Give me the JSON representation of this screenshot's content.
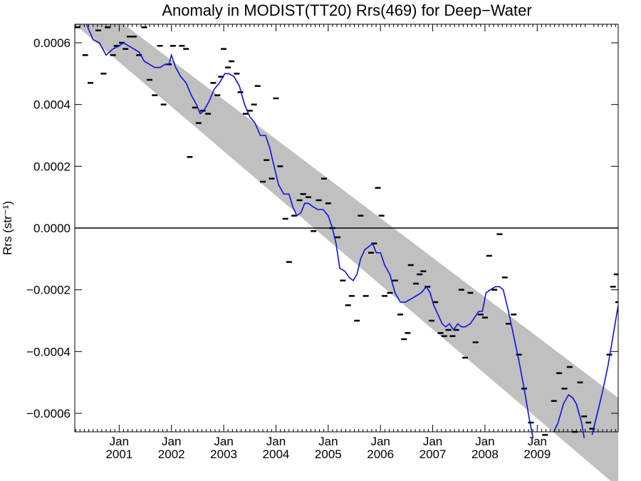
{
  "chart_data": {
    "type": "scatter",
    "title": "Anomaly in MODIST(TT20) Rrs(469) for Deep−Water",
    "xlabel": "",
    "ylabel": "Rrs (str⁻¹)",
    "xlim": [
      2000.15,
      2010.55
    ],
    "ylim": [
      -0.00066,
      0.00066
    ],
    "x_ticks": [
      {
        "x": 2001.0,
        "month": "Jan",
        "year": "2001"
      },
      {
        "x": 2002.0,
        "month": "Jan",
        "year": "2002"
      },
      {
        "x": 2003.0,
        "month": "Jan",
        "year": "2003"
      },
      {
        "x": 2004.0,
        "month": "Jan",
        "year": "2004"
      },
      {
        "x": 2005.0,
        "month": "Jan",
        "year": "2005"
      },
      {
        "x": 2006.0,
        "month": "Jan",
        "year": "2006"
      },
      {
        "x": 2007.0,
        "month": "Jan",
        "year": "2007"
      },
      {
        "x": 2008.0,
        "month": "Jan",
        "year": "2008"
      },
      {
        "x": 2009.0,
        "month": "Jan",
        "year": "2009"
      }
    ],
    "y_ticks": [
      {
        "y": 0.0006,
        "label": "0.0006"
      },
      {
        "y": 0.0004,
        "label": "0.0004"
      },
      {
        "y": 0.0002,
        "label": "0.0002"
      },
      {
        "y": 0.0,
        "label": "0.0000"
      },
      {
        "y": -0.0002,
        "label": "−0.0002"
      },
      {
        "y": -0.0004,
        "label": "−0.0004"
      },
      {
        "y": -0.0006,
        "label": "−0.0006"
      }
    ],
    "zero_line": 0.0,
    "band": {
      "upper": [
        [
          2000.15,
          0.00078
        ],
        [
          2010.55,
          -0.00055
        ]
      ],
      "lower": [
        [
          2000.15,
          0.00066
        ],
        [
          2010.55,
          -0.00084
        ]
      ],
      "color": "#c0c0c0"
    },
    "series": [
      {
        "marker": "dash",
        "color": "#000000",
        "points": [
          [
            2000.2,
            0.00065
          ],
          [
            2000.35,
            0.00056
          ],
          [
            2000.45,
            0.00047
          ],
          [
            2000.6,
            0.00064
          ],
          [
            2000.7,
            0.0005
          ],
          [
            2000.78,
            0.00065
          ],
          [
            2000.88,
            0.00056
          ],
          [
            2000.95,
            0.00059
          ],
          [
            2001.05,
            0.0006
          ],
          [
            2001.12,
            0.00058
          ],
          [
            2001.2,
            0.00062
          ],
          [
            2001.28,
            0.00062
          ],
          [
            2001.38,
            0.00056
          ],
          [
            2001.48,
            0.00065
          ],
          [
            2001.58,
            0.00048
          ],
          [
            2001.68,
            0.00043
          ],
          [
            2001.78,
            0.00059
          ],
          [
            2001.85,
            0.0004
          ],
          [
            2001.95,
            0.00053
          ],
          [
            2002.03,
            0.00059
          ],
          [
            2002.12,
            0.00067
          ],
          [
            2002.2,
            0.00059
          ],
          [
            2002.28,
            0.00058
          ],
          [
            2002.35,
            0.00023
          ],
          [
            2002.45,
            0.00039
          ],
          [
            2002.52,
            0.00034
          ],
          [
            2002.6,
            0.00038
          ],
          [
            2002.7,
            0.00037
          ],
          [
            2002.8,
            0.00047
          ],
          [
            2002.88,
            0.00043
          ],
          [
            2002.95,
            0.00049
          ],
          [
            2003.0,
            0.00058
          ],
          [
            2003.08,
            0.00052
          ],
          [
            2003.15,
            0.00054
          ],
          [
            2003.25,
            0.0005
          ],
          [
            2003.32,
            0.00044
          ],
          [
            2003.42,
            0.00037
          ],
          [
            2003.5,
            0.00038
          ],
          [
            2003.58,
            0.0004
          ],
          [
            2003.65,
            0.00046
          ],
          [
            2003.75,
            0.00015
          ],
          [
            2003.82,
            0.00022
          ],
          [
            2003.92,
            0.00016
          ],
          [
            2004.0,
            0.00042
          ],
          [
            2004.08,
            0.0002
          ],
          [
            2004.18,
            3e-05
          ],
          [
            2004.25,
            -0.00011
          ],
          [
            2004.35,
            4e-05
          ],
          [
            2004.45,
            9e-05
          ],
          [
            2004.52,
            0.00011
          ],
          [
            2004.62,
            0.0001
          ],
          [
            2004.72,
            -1e-05
          ],
          [
            2004.82,
            9e-05
          ],
          [
            2004.92,
            0.00016
          ],
          [
            2005.0,
            8e-05
          ],
          [
            2005.08,
            0.0
          ],
          [
            2005.18,
            -3e-05
          ],
          [
            2005.28,
            -0.00017
          ],
          [
            2005.38,
            -0.00025
          ],
          [
            2005.45,
            -0.00022
          ],
          [
            2005.55,
            -0.0003
          ],
          [
            2005.62,
            4e-05
          ],
          [
            2005.72,
            -0.00022
          ],
          [
            2005.82,
            -8e-05
          ],
          [
            2005.88,
            -5e-05
          ],
          [
            2005.95,
            0.00013
          ],
          [
            2006.02,
            4e-05
          ],
          [
            2006.08,
            -0.00022
          ],
          [
            2006.18,
            -0.00021
          ],
          [
            2006.28,
            -0.00017
          ],
          [
            2006.38,
            -0.00028
          ],
          [
            2006.45,
            -0.00036
          ],
          [
            2006.52,
            -0.00034
          ],
          [
            2006.58,
            -0.00012
          ],
          [
            2006.68,
            -0.00018
          ],
          [
            2006.75,
            -0.00015
          ],
          [
            2006.82,
            -0.00014
          ],
          [
            2006.9,
            -0.00019
          ],
          [
            2006.98,
            -0.0003
          ],
          [
            2007.05,
            -0.00024
          ],
          [
            2007.15,
            -0.00034
          ],
          [
            2007.22,
            -0.00035
          ],
          [
            2007.3,
            -0.00033
          ],
          [
            2007.38,
            -0.00035
          ],
          [
            2007.45,
            -0.00033
          ],
          [
            2007.55,
            -0.0002
          ],
          [
            2007.62,
            -0.00042
          ],
          [
            2007.72,
            -0.00021
          ],
          [
            2007.82,
            -0.00037
          ],
          [
            2007.92,
            -0.00028
          ],
          [
            2008.0,
            -0.00029
          ],
          [
            2008.08,
            -9e-05
          ],
          [
            2008.18,
            -0.0002
          ],
          [
            2008.28,
            -2e-05
          ],
          [
            2008.38,
            -0.00016
          ],
          [
            2008.45,
            -0.00031
          ],
          [
            2008.55,
            -0.00028
          ],
          [
            2008.65,
            -0.00041
          ],
          [
            2008.75,
            -0.00052
          ],
          [
            2008.88,
            -0.00063
          ],
          [
            2009.15,
            -0.00067
          ],
          [
            2009.32,
            -0.00056
          ],
          [
            2009.42,
            -0.00047
          ],
          [
            2009.52,
            -0.00052
          ],
          [
            2009.62,
            -0.00045
          ],
          [
            2009.72,
            -0.00066
          ],
          [
            2009.82,
            -0.0005
          ],
          [
            2009.9,
            -0.00061
          ],
          [
            2009.98,
            -0.00063
          ],
          [
            2010.05,
            -0.00065
          ],
          [
            2010.38,
            -0.00041
          ],
          [
            2010.45,
            -0.00019
          ],
          [
            2010.52,
            -0.00015
          ],
          [
            2010.55,
            -0.00024
          ]
        ]
      },
      {
        "marker": "line",
        "color": "#1010dd",
        "points": [
          [
            2000.35,
            0.00067
          ],
          [
            2000.5,
            0.00061
          ],
          [
            2000.62,
            0.0006
          ],
          [
            2000.75,
            0.00056
          ],
          [
            2000.88,
            0.00058
          ],
          [
            2001.0,
            0.00059
          ],
          [
            2001.08,
            0.0006
          ],
          [
            2001.18,
            0.00059
          ],
          [
            2001.28,
            0.00058
          ],
          [
            2001.38,
            0.00057
          ],
          [
            2001.48,
            0.00054
          ],
          [
            2001.58,
            0.00053
          ],
          [
            2001.68,
            0.00052
          ],
          [
            2001.78,
            0.00052
          ],
          [
            2001.88,
            0.00053
          ],
          [
            2001.95,
            0.00053
          ],
          [
            2002.0,
            0.00056
          ],
          [
            2002.08,
            0.00052
          ],
          [
            2002.18,
            0.00049
          ],
          [
            2002.28,
            0.00047
          ],
          [
            2002.38,
            0.00043
          ],
          [
            2002.48,
            0.0004
          ],
          [
            2002.55,
            0.00037
          ],
          [
            2002.62,
            0.00038
          ],
          [
            2002.72,
            0.00041
          ],
          [
            2002.82,
            0.00045
          ],
          [
            2002.92,
            0.00047
          ],
          [
            2003.02,
            0.0005
          ],
          [
            2003.1,
            0.0005
          ],
          [
            2003.2,
            0.00049
          ],
          [
            2003.3,
            0.00046
          ],
          [
            2003.4,
            0.0004
          ],
          [
            2003.5,
            0.00036
          ],
          [
            2003.6,
            0.00034
          ],
          [
            2003.7,
            0.0003
          ],
          [
            2003.8,
            0.0003
          ],
          [
            2003.88,
            0.00026
          ],
          [
            2003.95,
            0.00021
          ],
          [
            2004.05,
            0.00014
          ],
          [
            2004.15,
            0.00011
          ],
          [
            2004.25,
            0.00011
          ],
          [
            2004.32,
            7e-05
          ],
          [
            2004.4,
            4e-05
          ],
          [
            2004.48,
            5e-05
          ],
          [
            2004.55,
            8e-05
          ],
          [
            2004.62,
            8e-05
          ],
          [
            2004.7,
            7e-05
          ],
          [
            2004.8,
            6e-05
          ],
          [
            2004.9,
            6e-05
          ],
          [
            2005.0,
            4e-05
          ],
          [
            2005.08,
            -0.0
          ],
          [
            2005.15,
            -5e-05
          ],
          [
            2005.22,
            -0.00013
          ],
          [
            2005.32,
            -0.00014
          ],
          [
            2005.4,
            -0.00016
          ],
          [
            2005.48,
            -0.00017
          ],
          [
            2005.55,
            -0.00015
          ],
          [
            2005.62,
            -0.0001
          ],
          [
            2005.7,
            -7e-05
          ],
          [
            2005.78,
            -6e-05
          ],
          [
            2005.85,
            -5e-05
          ],
          [
            2005.92,
            -8e-05
          ],
          [
            2006.0,
            -8e-05
          ],
          [
            2006.08,
            -0.00012
          ],
          [
            2006.18,
            -0.00015
          ],
          [
            2006.28,
            -0.00021
          ],
          [
            2006.38,
            -0.00024
          ],
          [
            2006.48,
            -0.00024
          ],
          [
            2006.58,
            -0.00023
          ],
          [
            2006.68,
            -0.00022
          ],
          [
            2006.78,
            -0.00021
          ],
          [
            2006.88,
            -0.00019
          ],
          [
            2006.95,
            -0.00021
          ],
          [
            2007.02,
            -0.00025
          ],
          [
            2007.1,
            -0.00028
          ],
          [
            2007.18,
            -0.00031
          ],
          [
            2007.25,
            -0.00032
          ],
          [
            2007.32,
            -0.00031
          ],
          [
            2007.4,
            -0.00033
          ],
          [
            2007.48,
            -0.00031
          ],
          [
            2007.55,
            -0.00032
          ],
          [
            2007.62,
            -0.00032
          ],
          [
            2007.72,
            -0.00031
          ],
          [
            2007.8,
            -0.00029
          ],
          [
            2007.88,
            -0.00027
          ],
          [
            2007.95,
            -0.00027
          ],
          [
            2008.02,
            -0.00021
          ],
          [
            2008.1,
            -0.0002
          ],
          [
            2008.2,
            -0.00019
          ],
          [
            2008.28,
            -0.00019
          ],
          [
            2008.35,
            -0.0002
          ],
          [
            2008.45,
            -0.00027
          ],
          [
            2008.55,
            -0.00035
          ],
          [
            2008.65,
            -0.00043
          ],
          [
            2008.75,
            -0.00052
          ],
          [
            2008.85,
            -0.00062
          ],
          [
            2008.92,
            -0.00068
          ]
        ]
      },
      {
        "marker": "line",
        "color": "#1010dd",
        "points": [
          [
            2009.32,
            -0.00066
          ],
          [
            2009.4,
            -0.00063
          ],
          [
            2009.5,
            -0.00057
          ],
          [
            2009.6,
            -0.00054
          ],
          [
            2009.68,
            -0.00055
          ],
          [
            2009.75,
            -0.00057
          ],
          [
            2009.85,
            -0.00063
          ],
          [
            2009.9,
            -0.00068
          ]
        ]
      },
      {
        "marker": "line",
        "color": "#1010dd",
        "points": [
          [
            2010.05,
            -0.00067
          ],
          [
            2010.15,
            -0.0006
          ],
          [
            2010.25,
            -0.00053
          ],
          [
            2010.35,
            -0.00045
          ],
          [
            2010.45,
            -0.00035
          ],
          [
            2010.55,
            -0.00025
          ]
        ]
      }
    ],
    "grid": false
  }
}
